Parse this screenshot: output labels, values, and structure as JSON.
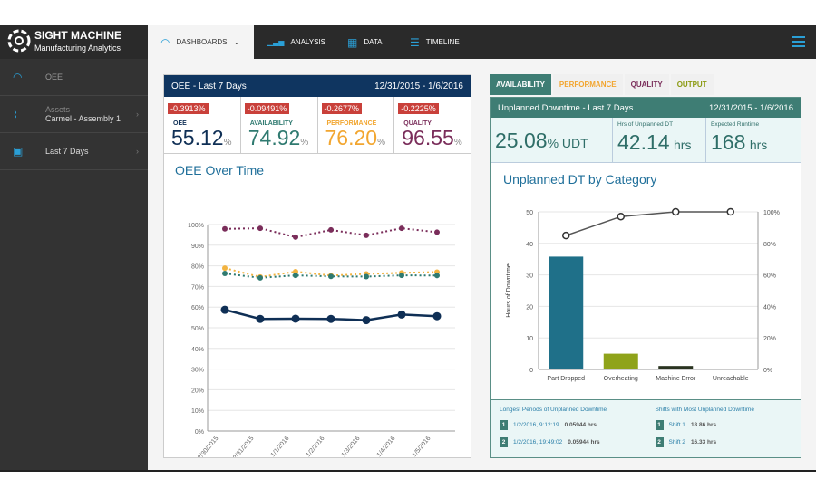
{
  "brand": {
    "name": "SIGHT MACHINE",
    "tagline": "Manufacturing Analytics"
  },
  "nav": {
    "dashboards": "DASHBOARDS",
    "analysis": "ANALYSIS",
    "data": "DATA",
    "timeline": "TIMELINE"
  },
  "sidebar": {
    "items": [
      {
        "label": "OEE"
      },
      {
        "sub": "Assets",
        "label": "Carmel - Assembly 1"
      },
      {
        "label": "Last 7 Days"
      }
    ]
  },
  "oee_panel": {
    "title": "OEE - Last 7 Days",
    "range": "12/31/2015 - 1/6/2016",
    "kpis": [
      {
        "delta": "-0.3913%",
        "label": "OEE",
        "value": "55.12",
        "unit": "%",
        "color": "#0f2f55"
      },
      {
        "delta": "-0.09491%",
        "label": "AVAILABILITY",
        "value": "74.92",
        "unit": "%",
        "color": "#2f7a70"
      },
      {
        "delta": "-0.2677%",
        "label": "PERFORMANCE",
        "value": "76.20",
        "unit": "%",
        "color": "#f2a630"
      },
      {
        "delta": "-0.2225%",
        "label": "QUALITY",
        "value": "96.55",
        "unit": "%",
        "color": "#7a2d5a"
      }
    ],
    "chart_title": "OEE Over Time"
  },
  "right_panel": {
    "tabs": [
      {
        "label": "AVAILABILITY",
        "color": "#ffffff"
      },
      {
        "label": "PERFORMANCE",
        "color": "#f2a630"
      },
      {
        "label": "QUALITY",
        "color": "#7a2d5a"
      },
      {
        "label": "OUTPUT",
        "color": "#8a9a10"
      }
    ],
    "title": "Unplanned Downtime - Last 7 Days",
    "range": "12/31/2015 - 1/6/2016",
    "udt": {
      "value": "25.08",
      "unit": "% UDT"
    },
    "hrs_dt": {
      "label": "Hrs of Unplanned DT",
      "value": "42.14",
      "unit": "hrs"
    },
    "runtime": {
      "label": "Expected Runtime",
      "value": "168",
      "unit": "hrs"
    },
    "chart_title": "Unplanned DT by Category",
    "longest": {
      "title": "Longest Periods of Unplanned Downtime",
      "rows": [
        {
          "n": "1",
          "when": "1/2/2016, 9:12:19",
          "dur": "0.05944 hrs"
        },
        {
          "n": "2",
          "when": "1/2/2016, 19:49:02",
          "dur": "0.05944 hrs"
        }
      ]
    },
    "shifts": {
      "title": "Shifts with Most Unplanned Downtime",
      "rows": [
        {
          "n": "1",
          "when": "Shift 1",
          "dur": "18.86 hrs"
        },
        {
          "n": "2",
          "when": "Shift 2",
          "dur": "16.33 hrs"
        }
      ]
    }
  },
  "chart_data": [
    {
      "type": "line",
      "x": [
        "12/30/2015",
        "12/31/2015",
        "1/1/2016",
        "1/2/2016",
        "1/3/2016",
        "1/4/2016",
        "1/5/2016"
      ],
      "ylim": [
        0,
        100
      ],
      "yticks": [
        "0%",
        "10%",
        "20%",
        "30%",
        "40%",
        "50%",
        "60%",
        "70%",
        "80%",
        "90%",
        "100%"
      ],
      "grid": true,
      "series": [
        {
          "key": "quality",
          "color": "#7a2d5a",
          "dashed": true,
          "values": [
            97.9,
            98.2,
            93.9,
            97.4,
            94.8,
            98.2,
            96.3
          ]
        },
        {
          "key": "performance",
          "color": "#f2b340",
          "dashed": true,
          "values": [
            78.9,
            74.6,
            77.2,
            75.3,
            76.1,
            76.6,
            77.0
          ]
        },
        {
          "key": "availability",
          "color": "#2f7a70",
          "dashed": true,
          "values": [
            76.3,
            74.2,
            75.4,
            74.9,
            74.8,
            75.4,
            75.3
          ]
        },
        {
          "key": "oee",
          "color": "#0f2f55",
          "dashed": false,
          "values": [
            58.7,
            54.3,
            54.4,
            54.3,
            53.7,
            56.4,
            55.6
          ]
        }
      ]
    },
    {
      "type": "bar",
      "categories": [
        "Part Dropped",
        "Overheating",
        "Machine Error",
        "Unreachable"
      ],
      "values": [
        35.8,
        5.0,
        1.1,
        0
      ],
      "bar_colors": [
        "#1f7089",
        "#8fa31a",
        "#2a3320",
        "#999999"
      ],
      "ylabel": "Hours of Downtime",
      "ylim": [
        0,
        50
      ],
      "yticks": [
        "0",
        "10",
        "20",
        "30",
        "40",
        "50"
      ],
      "y2ticks": [
        "0%",
        "20%",
        "40%",
        "60%",
        "80%",
        "100%"
      ],
      "cumulative_pct": [
        85,
        97,
        100,
        100
      ],
      "grid": true
    }
  ]
}
